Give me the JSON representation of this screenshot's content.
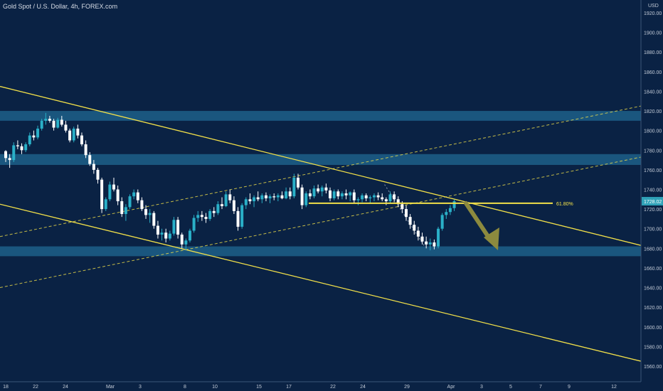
{
  "header": {
    "title": "Gold Spot / U.S. Dollar, 4h, FOREX.com"
  },
  "colors": {
    "background": "#0a2244",
    "candle_up": "#2ab0c8",
    "candle_down": "#ffffff",
    "zone": "#1d5f88",
    "trendline": "#f2e049",
    "arrow": "#8c8a3e",
    "axis_text": "#c4ccd8",
    "price_badge": "#2fa2b8"
  },
  "chart_data": {
    "type": "candlestick",
    "title": "Gold Spot / U.S. Dollar, 4h, FOREX.com",
    "unit": "USD",
    "y_ticks": [
      1920,
      1900,
      1880,
      1860,
      1840,
      1820,
      1800,
      1780,
      1760,
      1740,
      1720,
      1700,
      1680,
      1660,
      1640,
      1620,
      1600,
      1580,
      1560
    ],
    "ylim": [
      1552,
      1932
    ],
    "x_ticks": [
      "18",
      "22",
      "24",
      "Mar",
      "3",
      "8",
      "10",
      "15",
      "17",
      "22",
      "24",
      "29",
      "Apr",
      "3",
      "5",
      "7",
      "9",
      "12"
    ],
    "xlim": [
      0,
      160
    ],
    "current_price": "1728.02",
    "fib_label": "61.80%",
    "fib_level": 1726,
    "zones": [
      {
        "from": 1810,
        "to": 1820
      },
      {
        "from": 1765,
        "to": 1776
      },
      {
        "from": 1672,
        "to": 1682
      }
    ],
    "lines": [
      {
        "style": "solid",
        "from": [
          0,
          1845
        ],
        "to": [
          160,
          1683
        ]
      },
      {
        "style": "solid",
        "from": [
          0,
          1725
        ],
        "to": [
          160,
          1565
        ]
      },
      {
        "style": "dashed",
        "from": [
          0,
          1692
        ],
        "to": [
          160,
          1825
        ]
      },
      {
        "style": "dashed",
        "from": [
          0,
          1640
        ],
        "to": [
          160,
          1773
        ]
      },
      {
        "style": "dotted",
        "from": [
          96,
          1745
        ],
        "to": [
          106,
          1682
        ]
      }
    ],
    "candles": [
      [
        1779,
        1780,
        1768,
        1772
      ],
      [
        1772,
        1776,
        1762,
        1770
      ],
      [
        1770,
        1788,
        1768,
        1785
      ],
      [
        1785,
        1790,
        1781,
        1784
      ],
      [
        1784,
        1787,
        1776,
        1780
      ],
      [
        1780,
        1788,
        1778,
        1786
      ],
      [
        1786,
        1798,
        1784,
        1795
      ],
      [
        1795,
        1800,
        1790,
        1793
      ],
      [
        1793,
        1805,
        1791,
        1802
      ],
      [
        1802,
        1812,
        1800,
        1810
      ],
      [
        1810,
        1818,
        1806,
        1812
      ],
      [
        1812,
        1815,
        1808,
        1810
      ],
      [
        1810,
        1812,
        1800,
        1803
      ],
      [
        1803,
        1813,
        1802,
        1811
      ],
      [
        1811,
        1815,
        1804,
        1806
      ],
      [
        1806,
        1810,
        1798,
        1800
      ],
      [
        1800,
        1802,
        1788,
        1790
      ],
      [
        1790,
        1804,
        1788,
        1802
      ],
      [
        1802,
        1806,
        1792,
        1795
      ],
      [
        1795,
        1798,
        1784,
        1786
      ],
      [
        1786,
        1790,
        1772,
        1775
      ],
      [
        1775,
        1778,
        1764,
        1766
      ],
      [
        1766,
        1770,
        1756,
        1760
      ],
      [
        1760,
        1762,
        1746,
        1750
      ],
      [
        1750,
        1752,
        1716,
        1720
      ],
      [
        1720,
        1732,
        1718,
        1730
      ],
      [
        1730,
        1748,
        1728,
        1745
      ],
      [
        1745,
        1752,
        1738,
        1740
      ],
      [
        1740,
        1744,
        1724,
        1728
      ],
      [
        1728,
        1732,
        1712,
        1715
      ],
      [
        1715,
        1725,
        1708,
        1722
      ],
      [
        1722,
        1735,
        1720,
        1733
      ],
      [
        1733,
        1740,
        1730,
        1737
      ],
      [
        1737,
        1740,
        1726,
        1729
      ],
      [
        1729,
        1732,
        1718,
        1720
      ],
      [
        1720,
        1724,
        1710,
        1714
      ],
      [
        1714,
        1720,
        1706,
        1716
      ],
      [
        1716,
        1718,
        1700,
        1703
      ],
      [
        1703,
        1708,
        1690,
        1694
      ],
      [
        1694,
        1700,
        1688,
        1696
      ],
      [
        1696,
        1700,
        1686,
        1690
      ],
      [
        1690,
        1698,
        1688,
        1695
      ],
      [
        1695,
        1712,
        1693,
        1709
      ],
      [
        1709,
        1712,
        1690,
        1694
      ],
      [
        1694,
        1696,
        1680,
        1684
      ],
      [
        1684,
        1690,
        1678,
        1688
      ],
      [
        1688,
        1700,
        1686,
        1698
      ],
      [
        1698,
        1714,
        1696,
        1711
      ],
      [
        1711,
        1718,
        1707,
        1714
      ],
      [
        1714,
        1718,
        1708,
        1712
      ],
      [
        1712,
        1716,
        1706,
        1710
      ],
      [
        1710,
        1720,
        1708,
        1718
      ],
      [
        1718,
        1722,
        1712,
        1716
      ],
      [
        1716,
        1728,
        1714,
        1725
      ],
      [
        1725,
        1732,
        1720,
        1723
      ],
      [
        1723,
        1738,
        1722,
        1735
      ],
      [
        1735,
        1740,
        1726,
        1729
      ],
      [
        1729,
        1733,
        1715,
        1718
      ],
      [
        1718,
        1722,
        1698,
        1702
      ],
      [
        1702,
        1726,
        1700,
        1724
      ],
      [
        1724,
        1732,
        1720,
        1730
      ],
      [
        1730,
        1736,
        1725,
        1728
      ],
      [
        1728,
        1734,
        1722,
        1732
      ],
      [
        1732,
        1738,
        1728,
        1730
      ],
      [
        1730,
        1736,
        1726,
        1734
      ],
      [
        1734,
        1737,
        1728,
        1731
      ],
      [
        1731,
        1735,
        1726,
        1733
      ],
      [
        1733,
        1736,
        1729,
        1732
      ],
      [
        1732,
        1736,
        1728,
        1734
      ],
      [
        1734,
        1738,
        1730,
        1731
      ],
      [
        1731,
        1742,
        1730,
        1738
      ],
      [
        1738,
        1742,
        1730,
        1733
      ],
      [
        1733,
        1756,
        1731,
        1752
      ],
      [
        1752,
        1756,
        1740,
        1742
      ],
      [
        1742,
        1745,
        1720,
        1724
      ],
      [
        1724,
        1738,
        1722,
        1736
      ],
      [
        1736,
        1740,
        1730,
        1733
      ],
      [
        1733,
        1744,
        1731,
        1741
      ],
      [
        1741,
        1745,
        1736,
        1738
      ],
      [
        1738,
        1744,
        1733,
        1742
      ],
      [
        1742,
        1746,
        1736,
        1739
      ],
      [
        1739,
        1742,
        1728,
        1731
      ],
      [
        1731,
        1740,
        1729,
        1738
      ],
      [
        1738,
        1740,
        1730,
        1733
      ],
      [
        1733,
        1738,
        1730,
        1736
      ],
      [
        1736,
        1740,
        1730,
        1734
      ],
      [
        1734,
        1738,
        1728,
        1737
      ],
      [
        1737,
        1740,
        1726,
        1729
      ],
      [
        1729,
        1732,
        1724,
        1730
      ],
      [
        1730,
        1736,
        1727,
        1734
      ],
      [
        1734,
        1736,
        1728,
        1731
      ],
      [
        1731,
        1734,
        1726,
        1732
      ],
      [
        1732,
        1736,
        1728,
        1734
      ],
      [
        1734,
        1737,
        1729,
        1732
      ],
      [
        1732,
        1736,
        1728,
        1730
      ],
      [
        1730,
        1732,
        1724,
        1728
      ],
      [
        1728,
        1738,
        1726,
        1735
      ],
      [
        1735,
        1738,
        1727,
        1730
      ],
      [
        1730,
        1733,
        1722,
        1725
      ],
      [
        1725,
        1728,
        1716,
        1720
      ],
      [
        1720,
        1724,
        1708,
        1712
      ],
      [
        1712,
        1715,
        1700,
        1704
      ],
      [
        1704,
        1708,
        1694,
        1698
      ],
      [
        1698,
        1702,
        1688,
        1692
      ],
      [
        1692,
        1696,
        1684,
        1687
      ],
      [
        1687,
        1692,
        1680,
        1684
      ],
      [
        1684,
        1690,
        1678,
        1686
      ],
      [
        1686,
        1689,
        1679,
        1682
      ],
      [
        1682,
        1702,
        1680,
        1700
      ],
      [
        1700,
        1716,
        1698,
        1714
      ],
      [
        1714,
        1720,
        1710,
        1717
      ],
      [
        1717,
        1724,
        1714,
        1721
      ],
      [
        1721,
        1730,
        1718,
        1728
      ]
    ]
  }
}
